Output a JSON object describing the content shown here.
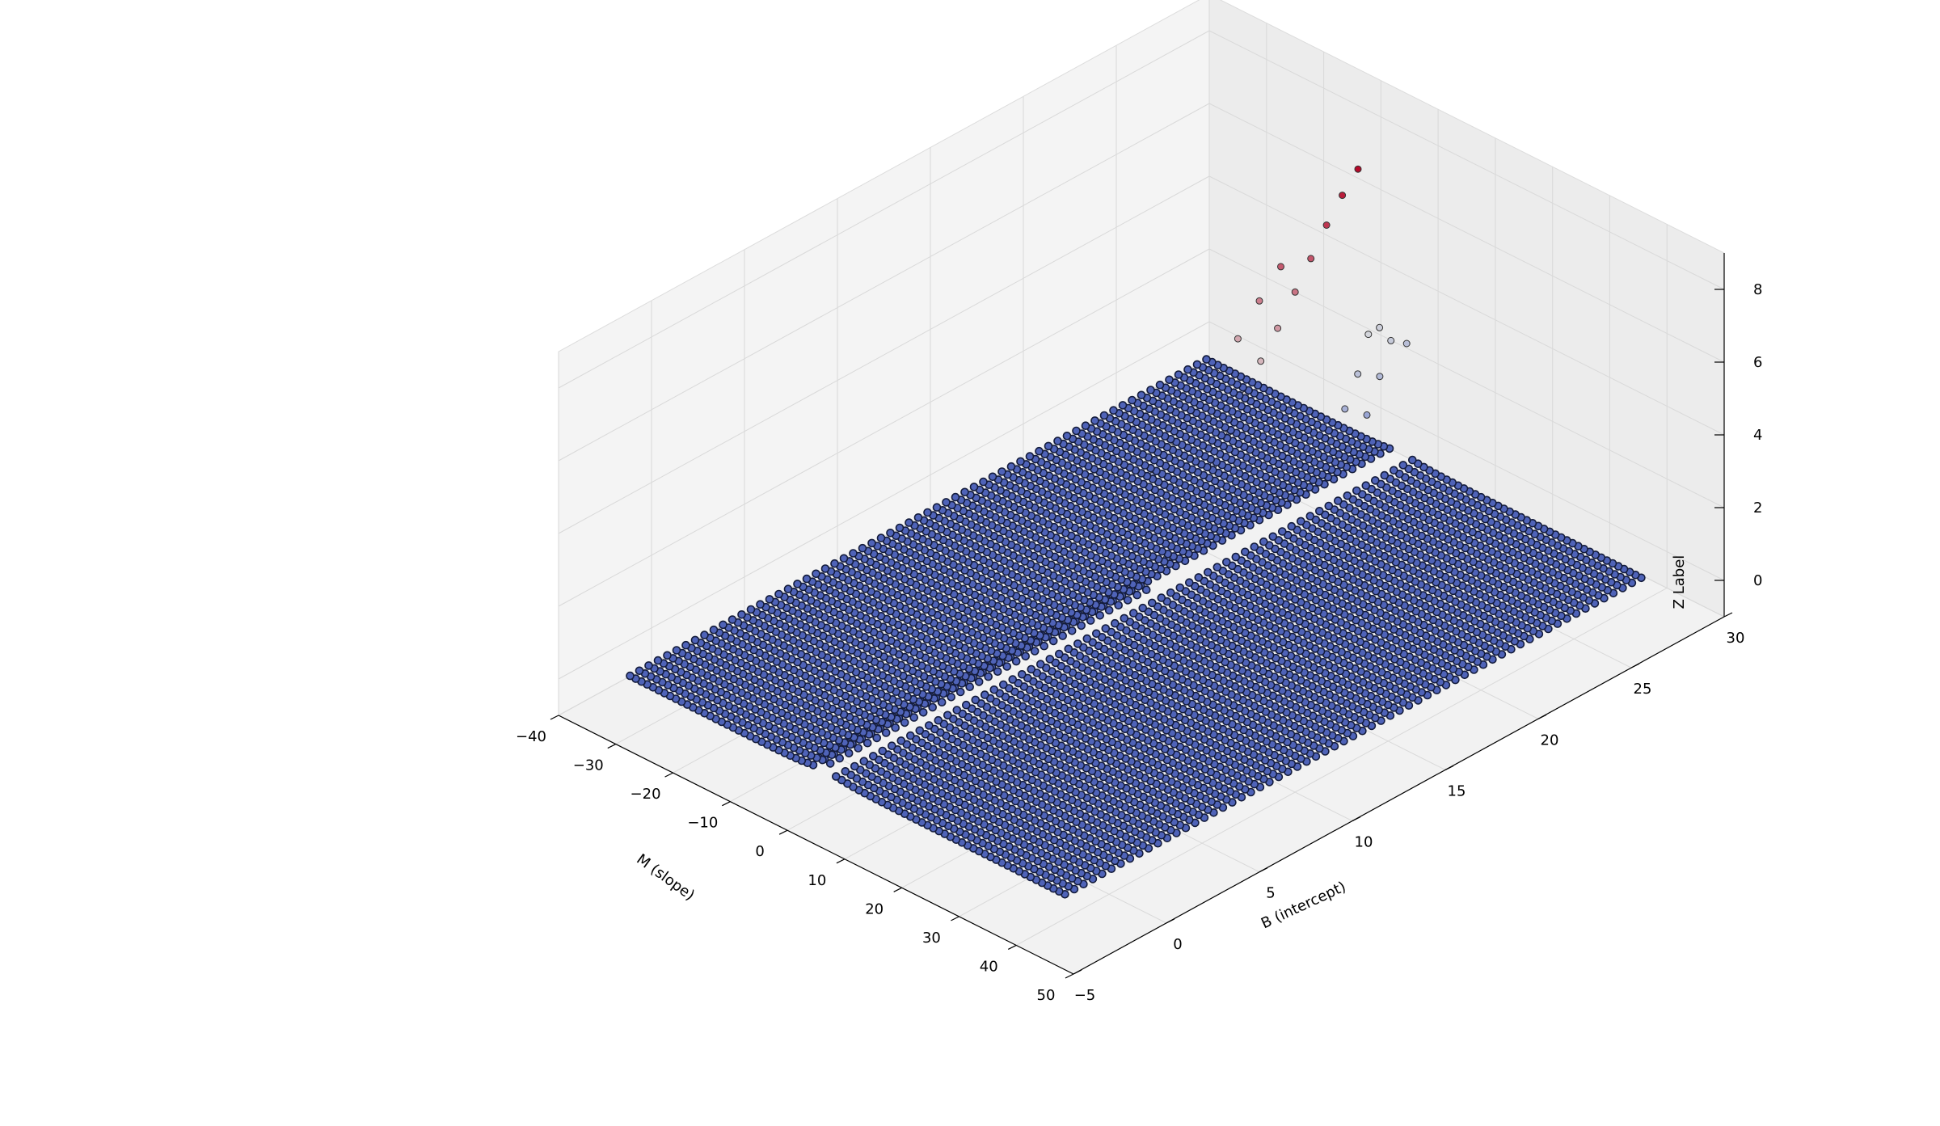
{
  "chart_data": {
    "type": "scatter",
    "projection": "3d",
    "title": "",
    "xlabel": "M (slope)",
    "ylabel": "B (intercept)",
    "zlabel": "Z Label",
    "xlim": [
      -40,
      50
    ],
    "ylim": [
      -5,
      30
    ],
    "zlim": [
      -1,
      9
    ],
    "x_ticks": [
      -40,
      -30,
      -20,
      -10,
      0,
      10,
      20,
      30,
      40,
      50
    ],
    "y_ticks": [
      -5,
      0,
      5,
      10,
      15,
      20,
      25,
      30
    ],
    "z_ticks": [
      0,
      2,
      4,
      6,
      8
    ],
    "grid": true,
    "colormap": {
      "low": "#4a64c8",
      "mid": "#dcdcdc",
      "high": "#b40426"
    },
    "background_point_color": "#23305e",
    "series": [
      {
        "description": "Dense grid of points: B from -3 to 28 (step 0.5), M from -34 to 42 (step 1); Z near 0 except close to M=0",
        "m_range": [
          -34,
          42
        ],
        "m_step": 1,
        "b_range": [
          -3,
          28
        ],
        "b_step": 0.5
      },
      {
        "description": "Elevated points along the ridge near M = 0",
        "points": [
          {
            "m": -1,
            "b": 26,
            "z": 8.4
          },
          {
            "m": -0.5,
            "b": 25,
            "z": 8.0
          },
          {
            "m": 0,
            "b": 24,
            "z": 7.5
          },
          {
            "m": 0.5,
            "b": 23,
            "z": 6.9
          },
          {
            "m": 1,
            "b": 22,
            "z": 6.3
          },
          {
            "m": 1.2,
            "b": 21,
            "z": 5.6
          },
          {
            "m": 1.5,
            "b": 20,
            "z": 5.0
          },
          {
            "m": 2,
            "b": 19,
            "z": 4.4
          },
          {
            "m": 2.5,
            "b": 18,
            "z": 3.7
          },
          {
            "m": -1.5,
            "b": 22,
            "z": 6.8
          },
          {
            "m": -2,
            "b": 21,
            "z": 6.1
          },
          {
            "m": -2.5,
            "b": 20,
            "z": 5.3
          },
          {
            "m": -3,
            "b": 19,
            "z": 4.6
          },
          {
            "m": -3.5,
            "b": 18,
            "z": 3.9
          },
          {
            "m": 3,
            "b": 17,
            "z": 3.1
          },
          {
            "m": 3.5,
            "b": 16,
            "z": 2.4
          },
          {
            "m": -4,
            "b": 17,
            "z": 3.2
          },
          {
            "m": 4,
            "b": 15,
            "z": 1.9
          },
          {
            "m": -4.5,
            "b": 16,
            "z": 2.5
          },
          {
            "m": 4.5,
            "b": 14,
            "z": 1.5
          },
          {
            "m": 0.8,
            "b": 26,
            "z": 4.0
          },
          {
            "m": 1.5,
            "b": 27,
            "z": 3.6
          },
          {
            "m": 2.2,
            "b": 25,
            "z": 3.3
          },
          {
            "m": 2.8,
            "b": 26,
            "z": 3.0
          },
          {
            "m": 3.2,
            "b": 24,
            "z": 2.7
          },
          {
            "m": 3.8,
            "b": 25,
            "z": 2.3
          },
          {
            "m": -0.5,
            "b": 27,
            "z": 3.8
          },
          {
            "m": 1,
            "b": 28,
            "z": 3.2
          }
        ]
      }
    ]
  }
}
